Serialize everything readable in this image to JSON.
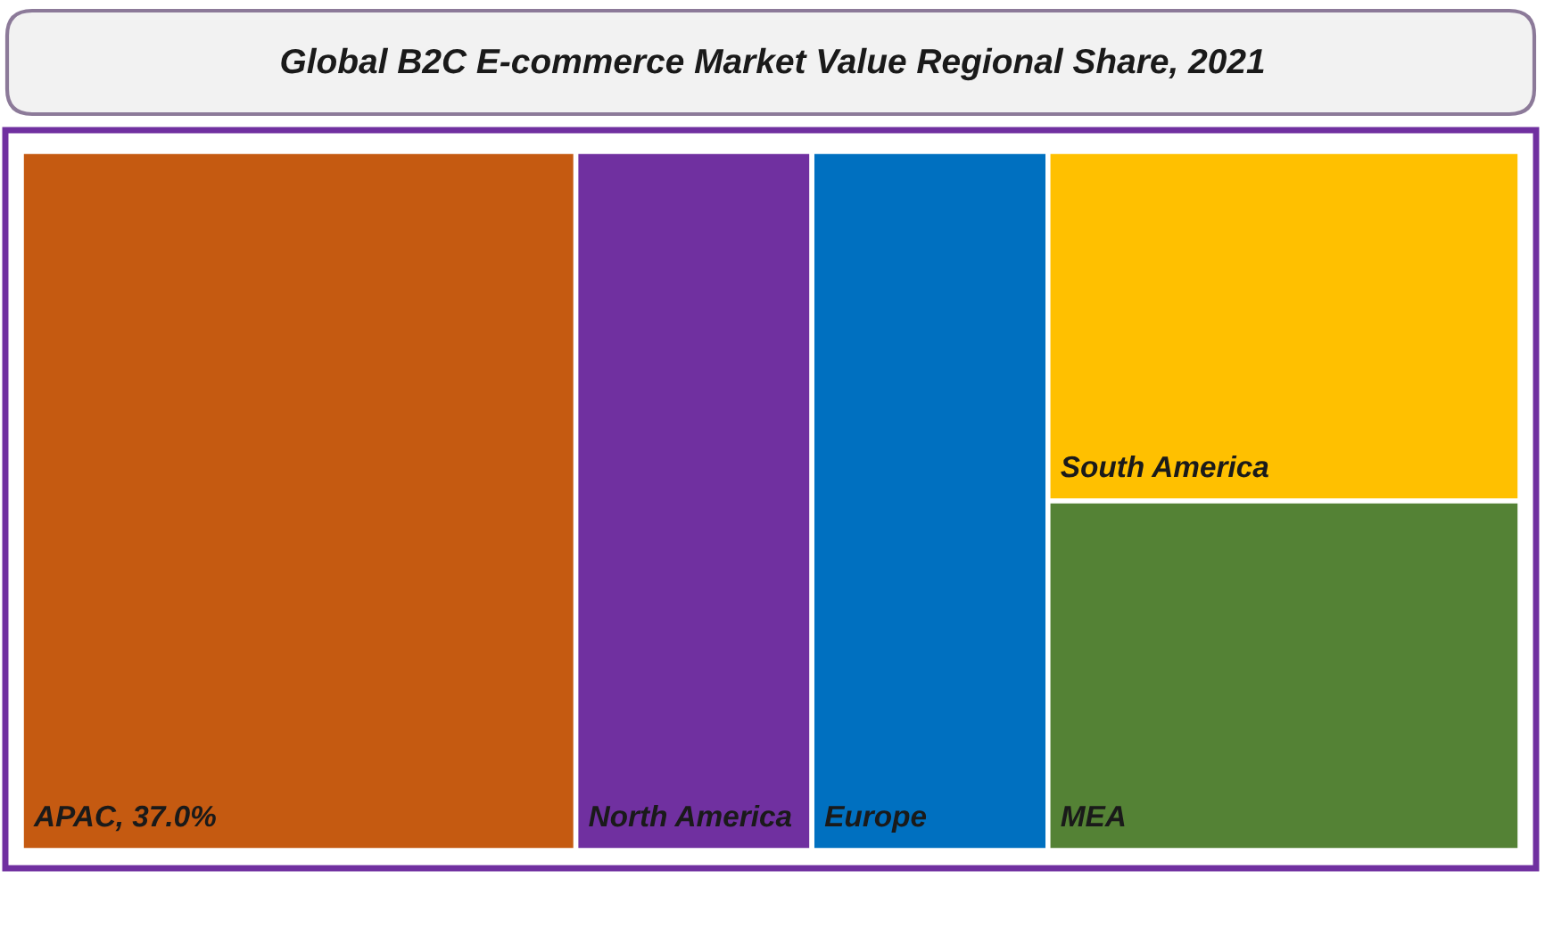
{
  "chart_data": {
    "type": "other",
    "title": "Global B2C E-commerce Market Value Regional Share, 2021",
    "categories": [
      "APAC",
      "North America",
      "Europe",
      "South America",
      "MEA"
    ],
    "values": [
      37.0,
      null,
      null,
      null,
      null
    ],
    "value_labels": [
      ", 37.0%",
      null,
      null,
      null,
      null
    ],
    "colors": [
      "#c55a11",
      "#7030a0",
      "#0070c0",
      "#ffc000",
      "#548235"
    ]
  }
}
